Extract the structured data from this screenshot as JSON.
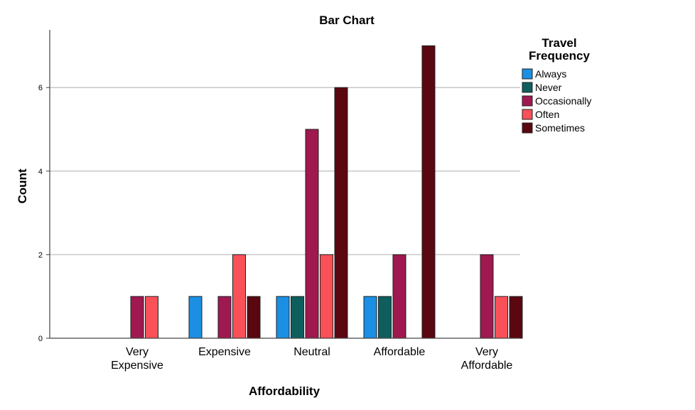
{
  "chart_data": {
    "type": "bar",
    "title": "Bar Chart",
    "xlabel": "Affordability",
    "ylabel": "Count",
    "ylim": [
      0,
      7
    ],
    "yticks": [
      0,
      2,
      4,
      6
    ],
    "grid": true,
    "categories": [
      "Very Expensive",
      "Expensive",
      "Neutral",
      "Affordable",
      "Very Affordable"
    ],
    "category_label_lines": [
      [
        "Very",
        "Expensive"
      ],
      [
        "Expensive"
      ],
      [
        "Neutral"
      ],
      [
        "Affordable"
      ],
      [
        "Very",
        "Affordable"
      ]
    ],
    "legend": {
      "title": "Travel Frequency",
      "title_lines": [
        "Travel",
        "Frequency"
      ],
      "placement": "right"
    },
    "series": [
      {
        "name": "Always",
        "color": "#1A8FE3",
        "values": [
          0,
          1,
          1,
          1,
          0
        ]
      },
      {
        "name": "Never",
        "color": "#0F5E5E",
        "values": [
          0,
          0,
          1,
          1,
          0
        ]
      },
      {
        "name": "Occasionally",
        "color": "#A01850",
        "values": [
          1,
          1,
          5,
          2,
          2
        ]
      },
      {
        "name": "Often",
        "color": "#FA5058",
        "values": [
          1,
          2,
          2,
          0,
          1
        ]
      },
      {
        "name": "Sometimes",
        "color": "#5A0710",
        "values": [
          0,
          1,
          6,
          7,
          1
        ]
      }
    ]
  }
}
